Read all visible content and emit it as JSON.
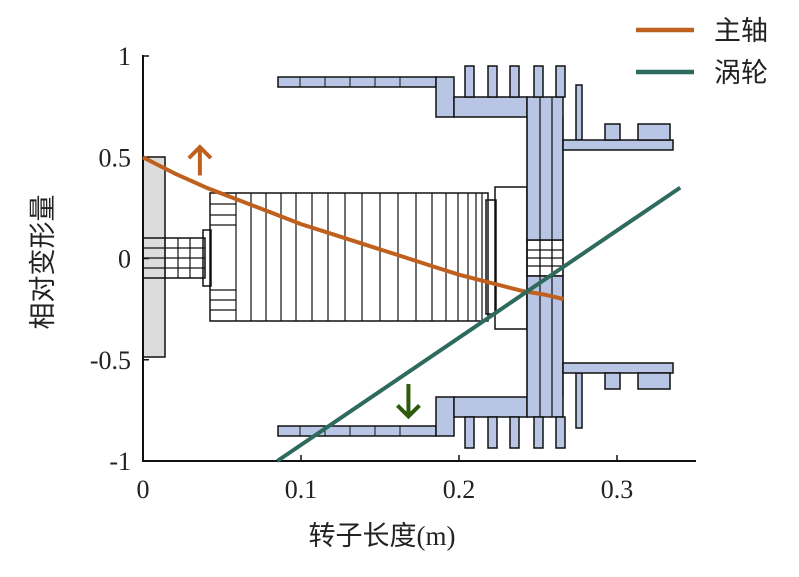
{
  "chart_data": {
    "type": "line",
    "xlabel": "转子长度(m)",
    "ylabel": "相对变形量",
    "xlim": [
      0,
      0.35
    ],
    "ylim": [
      -1,
      1
    ],
    "x_ticks": [
      "0",
      "0.1",
      "0.2",
      "0.3"
    ],
    "y_ticks": [
      "1",
      "0.5",
      "0",
      "-0.5",
      "-1"
    ],
    "grid": false,
    "legend_position": "top-right",
    "series": [
      {
        "name": "主轴",
        "color": "#C0601E",
        "x": [
          0.0,
          0.02,
          0.04,
          0.06,
          0.08,
          0.1,
          0.12,
          0.14,
          0.16,
          0.18,
          0.2,
          0.22,
          0.24,
          0.255,
          0.266
        ],
        "y": [
          0.5,
          0.42,
          0.35,
          0.29,
          0.23,
          0.17,
          0.12,
          0.07,
          0.02,
          -0.03,
          -0.08,
          -0.12,
          -0.16,
          -0.18,
          -0.2
        ]
      },
      {
        "name": "涡轮",
        "color": "#2E6B5E",
        "x": [
          0.085,
          0.34
        ],
        "y": [
          -1.0,
          0.35
        ]
      }
    ],
    "annotations": [
      {
        "type": "arrow-up",
        "color": "#C0601E",
        "x": 0.036,
        "y_from": 0.41,
        "y_to": 0.55
      },
      {
        "type": "arrow-down",
        "color": "#2E5A0A",
        "x": 0.168,
        "y_from": -0.62,
        "y_to": -0.78
      }
    ]
  }
}
